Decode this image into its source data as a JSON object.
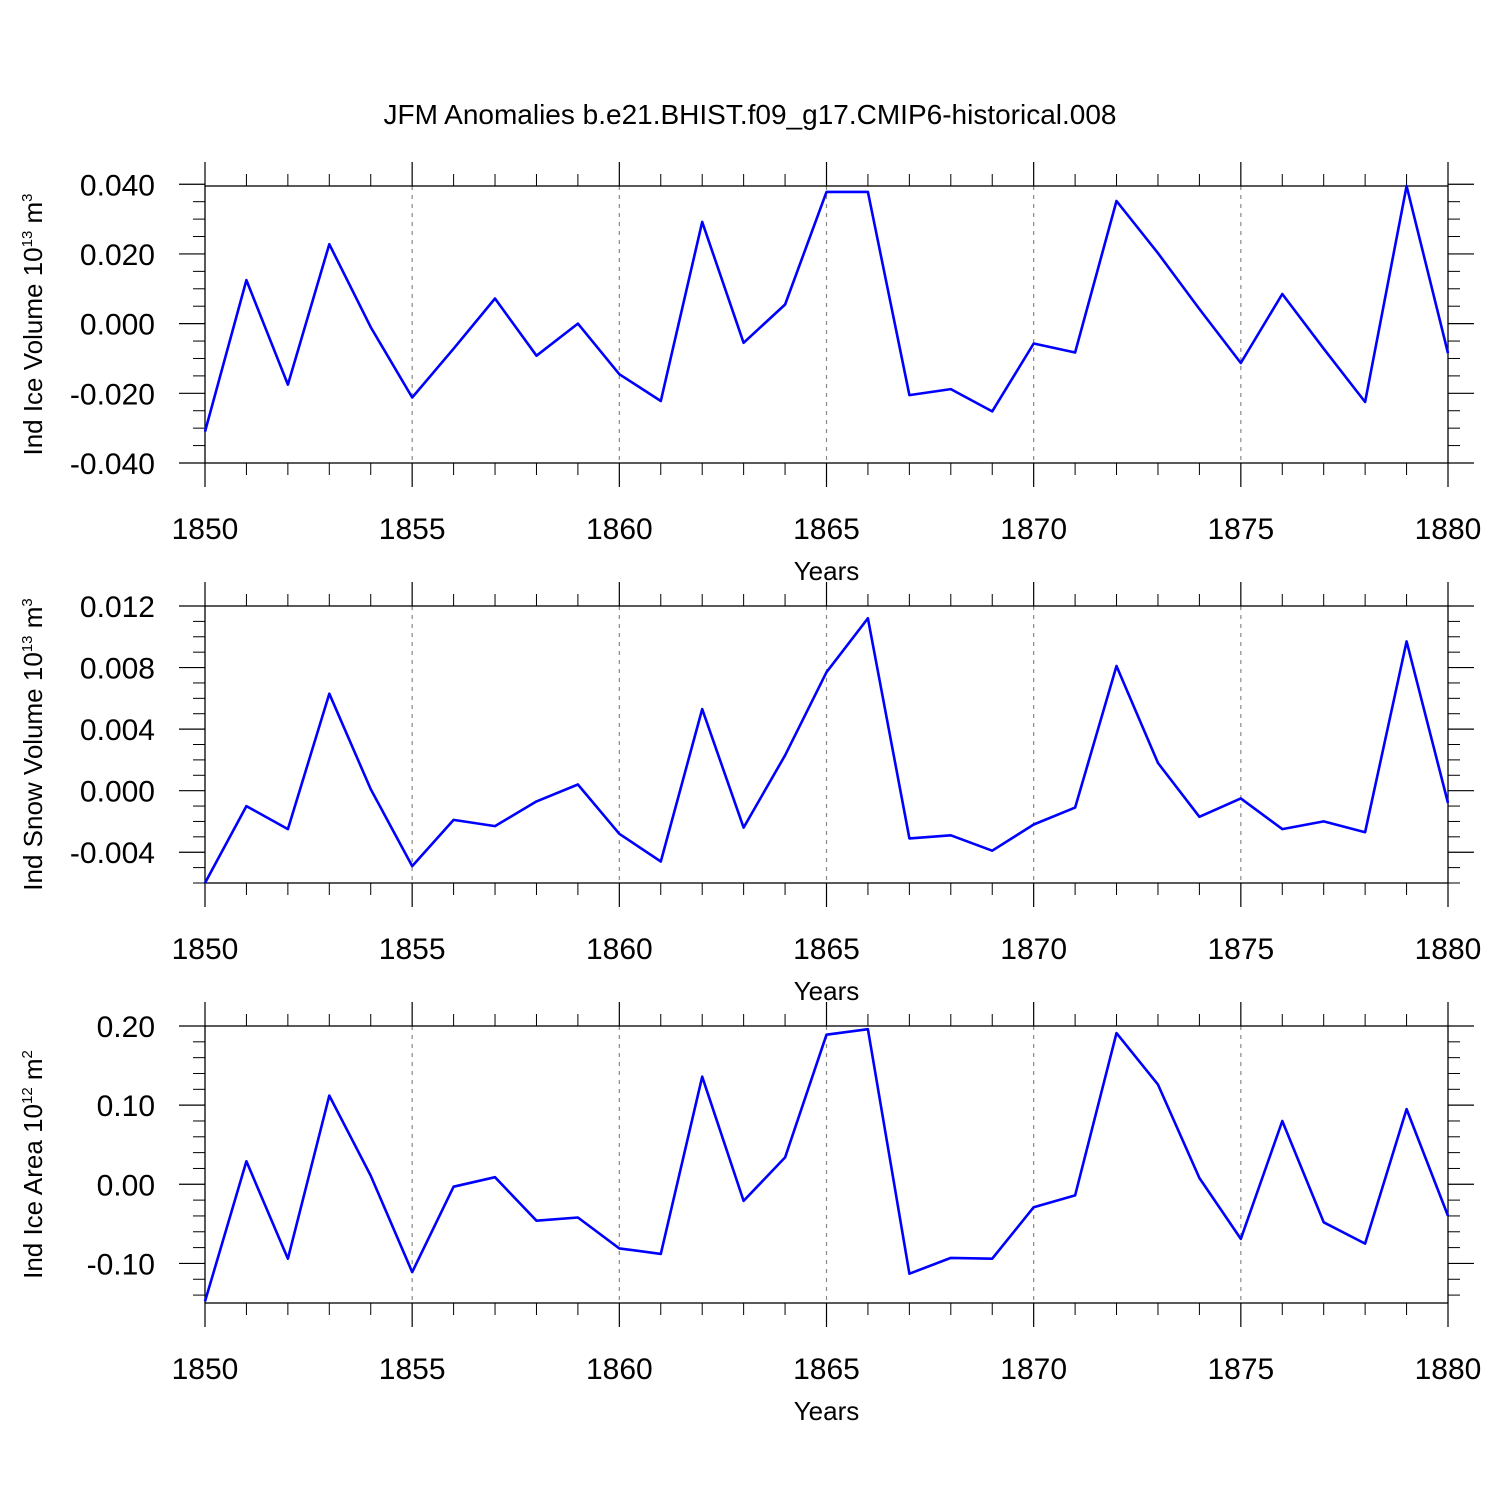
{
  "figure": {
    "title": "JFM Anomalies b.e21.BHIST.f09_g17.CMIP6-historical.008",
    "line_color": "#0000ff"
  },
  "chart_data": [
    {
      "type": "line",
      "ylabel": {
        "pre": "Ind Ice Volume 10",
        "exp": "13",
        "mid": " m",
        "exp2": "3"
      },
      "xlabel": "Years",
      "xlim": [
        1850,
        1880
      ],
      "ylim": [
        -0.04,
        0.0395
      ],
      "xticks": [
        1850,
        1855,
        1860,
        1865,
        1870,
        1875,
        1880
      ],
      "yticks": [
        -0.04,
        -0.02,
        0.0,
        0.02,
        0.04
      ],
      "ytick_labels": [
        "-0.040",
        "-0.020",
        "0.000",
        "0.020",
        "0.040"
      ],
      "y_minor_step": 0.005,
      "grid": "vertical dashed at major x ticks",
      "series": [
        {
          "x": [
            1850,
            1851,
            1852,
            1853,
            1854,
            1855,
            1856,
            1857,
            1858,
            1859,
            1860,
            1861,
            1862,
            1863,
            1864,
            1865,
            1866,
            1867,
            1868,
            1869,
            1870,
            1871,
            1872,
            1873,
            1874,
            1875,
            1876,
            1877,
            1878,
            1879,
            1880
          ],
          "values": [
            -0.031,
            0.0125,
            -0.0175,
            0.0228,
            -0.001,
            -0.0212,
            -0.0072,
            0.0072,
            -0.0092,
            0.0,
            -0.0145,
            -0.0222,
            0.0292,
            -0.0055,
            0.0055,
            0.0378,
            0.0378,
            -0.0205,
            -0.0188,
            -0.0252,
            -0.0057,
            -0.0083,
            0.0352,
            0.0202,
            0.0042,
            -0.0113,
            0.0085,
            -0.0072,
            -0.0225,
            0.0395,
            -0.0085
          ]
        }
      ]
    },
    {
      "type": "line",
      "ylabel": {
        "pre": "Ind Snow Volume 10",
        "exp": "13",
        "mid": " m",
        "exp2": "3"
      },
      "xlabel": "Years",
      "xlim": [
        1850,
        1880
      ],
      "ylim": [
        -0.006,
        0.012
      ],
      "xticks": [
        1850,
        1855,
        1860,
        1865,
        1870,
        1875,
        1880
      ],
      "yticks": [
        -0.004,
        0.0,
        0.004,
        0.008,
        0.012
      ],
      "ytick_labels": [
        "-0.004",
        "0.000",
        "0.004",
        "0.008",
        "0.012"
      ],
      "y_minor_step": 0.001,
      "grid": "vertical dashed at major x ticks",
      "series": [
        {
          "x": [
            1850,
            1851,
            1852,
            1853,
            1854,
            1855,
            1856,
            1857,
            1858,
            1859,
            1860,
            1861,
            1862,
            1863,
            1864,
            1865,
            1866,
            1867,
            1868,
            1869,
            1870,
            1871,
            1872,
            1873,
            1874,
            1875,
            1876,
            1877,
            1878,
            1879,
            1880
          ],
          "values": [
            -0.006,
            -0.001,
            -0.0025,
            0.0063,
            0.0001,
            -0.0049,
            -0.0019,
            -0.0023,
            -0.0007,
            0.0004,
            -0.0028,
            -0.0046,
            0.0053,
            -0.0024,
            0.0023,
            0.0077,
            0.0112,
            -0.0031,
            -0.0029,
            -0.0039,
            -0.0022,
            -0.0011,
            0.0081,
            0.0018,
            -0.0017,
            -0.0005,
            -0.0025,
            -0.002,
            -0.0027,
            0.0097,
            -0.0008
          ]
        }
      ]
    },
    {
      "type": "line",
      "ylabel": {
        "pre": "Ind Ice Area 10",
        "exp": "12",
        "mid": " m",
        "exp2": "2"
      },
      "xlabel": "Years",
      "xlim": [
        1850,
        1880
      ],
      "ylim": [
        -0.15,
        0.2
      ],
      "xticks": [
        1850,
        1855,
        1860,
        1865,
        1870,
        1875,
        1880
      ],
      "yticks": [
        -0.1,
        0.0,
        0.1,
        0.2
      ],
      "ytick_labels": [
        "-0.10",
        "0.00",
        "0.10",
        "0.20"
      ],
      "y_minor_step": 0.02,
      "grid": "vertical dashed at major x ticks",
      "series": [
        {
          "x": [
            1850,
            1851,
            1852,
            1853,
            1854,
            1855,
            1856,
            1857,
            1858,
            1859,
            1860,
            1861,
            1862,
            1863,
            1864,
            1865,
            1866,
            1867,
            1868,
            1869,
            1870,
            1871,
            1872,
            1873,
            1874,
            1875,
            1876,
            1877,
            1878,
            1879,
            1880
          ],
          "values": [
            -0.148,
            0.029,
            -0.094,
            0.112,
            0.011,
            -0.111,
            -0.003,
            0.009,
            -0.046,
            -0.042,
            -0.081,
            -0.088,
            0.136,
            -0.021,
            0.034,
            0.189,
            0.196,
            -0.113,
            -0.093,
            -0.094,
            -0.029,
            -0.014,
            0.191,
            0.126,
            0.008,
            -0.069,
            0.08,
            -0.048,
            -0.075,
            0.095,
            -0.04
          ]
        }
      ]
    }
  ]
}
